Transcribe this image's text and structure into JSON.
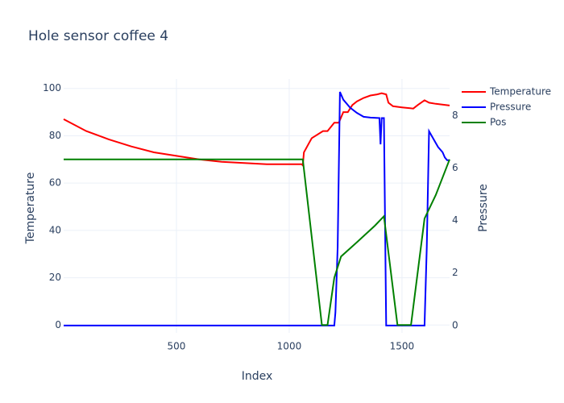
{
  "chart_data": {
    "type": "line",
    "title": "Hole sensor coffee 4",
    "x_label": "Index",
    "y_label": "Temperature",
    "y2_label": "Pressure",
    "xlim": [
      0,
      1711
    ],
    "xticks": [
      500,
      1000,
      1500
    ],
    "ylim": [
      -3.3,
      104
    ],
    "yticks": [
      0,
      20,
      40,
      60,
      80,
      100
    ],
    "y2lim": [
      -0.28,
      9.39
    ],
    "y2ticks": [
      0,
      2,
      4,
      6,
      8
    ],
    "grid": true,
    "legend": "top-right",
    "series": [
      {
        "name": "Temperature",
        "color": "#ff0000",
        "x": [
          0,
          100,
          200,
          300,
          400,
          500,
          600,
          700,
          800,
          900,
          1000,
          1055,
          1060,
          1065,
          1100,
          1150,
          1170,
          1200,
          1220,
          1240,
          1260,
          1280,
          1300,
          1330,
          1360,
          1390,
          1410,
          1430,
          1440,
          1460,
          1500,
          1550,
          1570,
          1600,
          1620,
          1650,
          1711
        ],
        "values": [
          87,
          82,
          78.5,
          75.5,
          73,
          71.5,
          70,
          69,
          68.5,
          68,
          68,
          68,
          67.5,
          73,
          79,
          82,
          82,
          85.5,
          85.5,
          90,
          90,
          93,
          94.5,
          96,
          97,
          97.5,
          98,
          97.5,
          94,
          92.5,
          92,
          91.5,
          93,
          95,
          94,
          93.5,
          92.8
        ]
      },
      {
        "name": "Pressure",
        "color": "#0000ff",
        "axis": "y2",
        "x": [
          0,
          1200,
          1205,
          1215,
          1225,
          1240,
          1270,
          1300,
          1330,
          1360,
          1400,
          1405,
          1410,
          1420,
          1430,
          1600,
          1610,
          1620,
          1640,
          1660,
          1680,
          1690,
          1700,
          1711
        ],
        "values": [
          0,
          0,
          0.5,
          3,
          8.9,
          8.6,
          8.3,
          8.1,
          7.95,
          7.92,
          7.9,
          6.9,
          7.9,
          7.9,
          0,
          0,
          3,
          7.4,
          7.1,
          6.8,
          6.6,
          6.4,
          6.3,
          6.3
        ]
      },
      {
        "name": "Pos",
        "color": "#008000",
        "x": [
          0,
          1060,
          1145,
          1170,
          1200,
          1230,
          1300,
          1380,
          1420,
          1480,
          1540,
          1600,
          1650,
          1711
        ],
        "values": [
          70,
          70,
          0,
          0,
          20,
          29,
          35,
          42,
          46,
          0,
          0,
          45,
          55,
          70
        ]
      }
    ]
  }
}
